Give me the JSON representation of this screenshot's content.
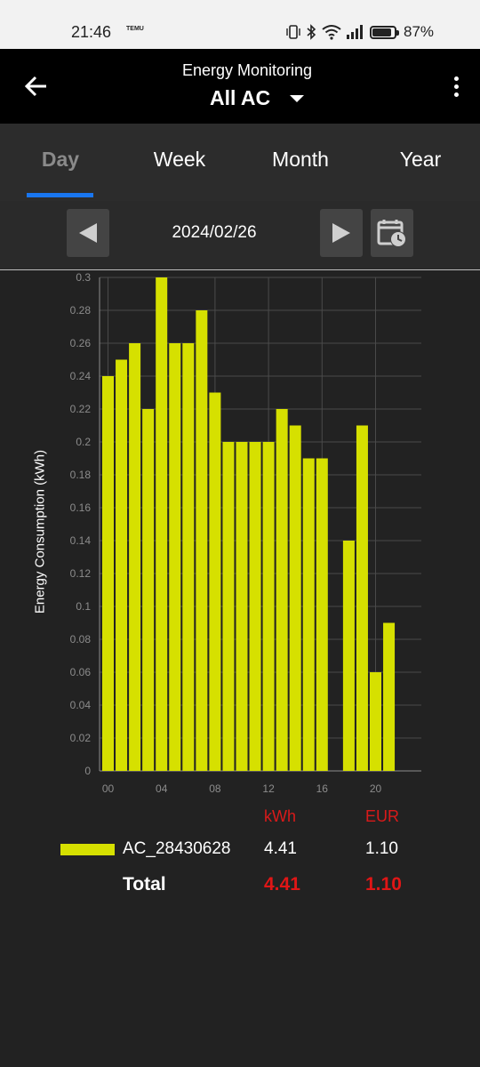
{
  "status_bar": {
    "time": "21:46",
    "app_badge": "TEMU",
    "battery": "87%",
    "battery_level": 0.87,
    "icons": [
      "vibrate-icon",
      "bluetooth-icon",
      "wifi-icon",
      "signal-icon",
      "battery-icon"
    ]
  },
  "app_bar": {
    "subtitle": "Energy Monitoring",
    "title": "All AC"
  },
  "tabs": [
    {
      "label": "Day",
      "active": true
    },
    {
      "label": "Week",
      "active": false
    },
    {
      "label": "Month",
      "active": false
    },
    {
      "label": "Year",
      "active": false
    }
  ],
  "date_nav": {
    "date": "2024/02/26"
  },
  "colors": {
    "bar": "#d6e000",
    "accent": "#1976f0",
    "total": "#e01616"
  },
  "chart_data": {
    "type": "bar",
    "ylabel": "Energy Consumption (kWh)",
    "xlabel": "",
    "ylim": [
      0,
      0.3
    ],
    "yticks": [
      "0",
      "0.02",
      "0.04",
      "0.06",
      "0.08",
      "0.1",
      "0.12",
      "0.14",
      "0.16",
      "0.18",
      "0.2",
      "0.22",
      "0.24",
      "0.26",
      "0.28",
      "0.3"
    ],
    "xticks": [
      "00",
      "04",
      "08",
      "12",
      "16",
      "20"
    ],
    "xtick_hours": [
      0,
      4,
      8,
      12,
      16,
      20
    ],
    "hours": [
      0,
      1,
      2,
      3,
      4,
      5,
      6,
      7,
      8,
      9,
      10,
      11,
      12,
      13,
      14,
      15,
      16,
      17,
      18,
      19,
      20,
      21,
      22,
      23
    ],
    "values": [
      0.24,
      0.25,
      0.26,
      0.22,
      0.3,
      0.26,
      0.26,
      0.28,
      0.23,
      0.2,
      0.2,
      0.2,
      0.2,
      0.22,
      0.21,
      0.19,
      0.19,
      0,
      0.14,
      0.21,
      0.06,
      0.09,
      0,
      0
    ],
    "grid": true,
    "series": [
      {
        "name": "AC_28430628",
        "values": [
          0.24,
          0.25,
          0.26,
          0.22,
          0.3,
          0.26,
          0.26,
          0.28,
          0.23,
          0.2,
          0.2,
          0.2,
          0.2,
          0.22,
          0.21,
          0.19,
          0.19,
          0,
          0.14,
          0.21,
          0.06,
          0.09,
          0,
          0
        ]
      }
    ]
  },
  "summary": {
    "header_kwh": "kWh",
    "header_eur": "EUR",
    "device": "AC_28430628",
    "device_kwh": "4.41",
    "device_eur": "1.10",
    "total_label": "Total",
    "total_kwh": "4.41",
    "total_eur": "1.10"
  }
}
